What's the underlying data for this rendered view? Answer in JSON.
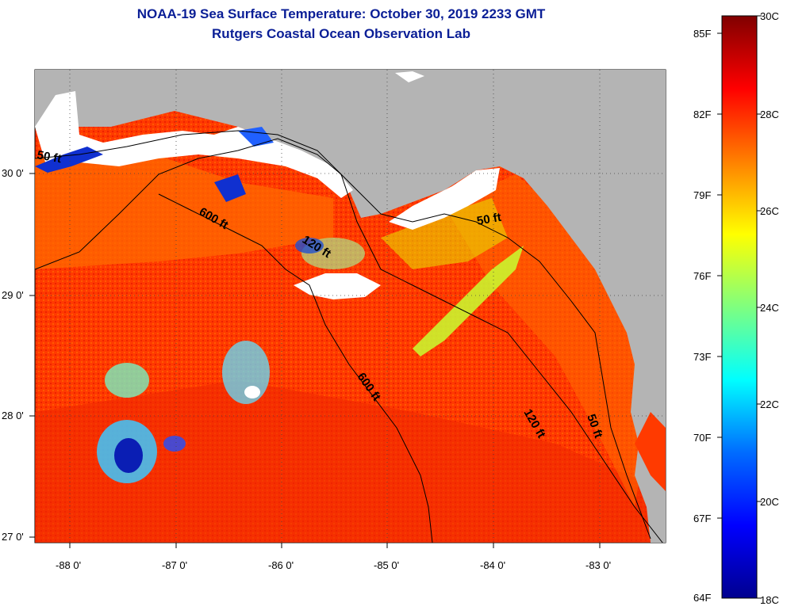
{
  "header": {
    "title": "NOAA-19 Sea Surface Temperature:  October 30, 2019 2233 GMT",
    "subtitle": "Rutgers Coastal Ocean Observation Lab"
  },
  "map": {
    "lon_ticks": [
      "-88 0'",
      "-87 0'",
      "-86 0'",
      "-85 0'",
      "-84 0'",
      "-83 0'"
    ],
    "lat_ticks": [
      "30 0'",
      "29 0'",
      "28 0'",
      "27 0'"
    ],
    "contour_labels": [
      "50 ft",
      "600 ft",
      "120 ft",
      "50 ft",
      "600 ft",
      "120 ft",
      "50 ft"
    ],
    "colors": {
      "land": "#b4b4b4",
      "cloud": "#ffffff",
      "warm_water": "#ff3b00"
    }
  },
  "colorbar": {
    "fahrenheit_labels": [
      "85F",
      "82F",
      "79F",
      "76F",
      "73F",
      "70F",
      "67F",
      "64F"
    ],
    "celsius_labels": [
      "30C",
      "28C",
      "26C",
      "24C",
      "22C",
      "20C",
      "18C"
    ],
    "range_c": [
      18,
      30
    ],
    "colormap": "jet"
  }
}
